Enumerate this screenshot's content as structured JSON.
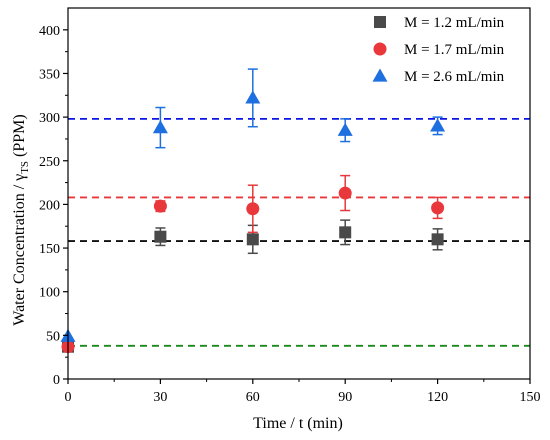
{
  "chart_data": {
    "type": "scatter",
    "xlabel": "Time / t (min)",
    "ylabel": {
      "main": "Water Concentration / γ",
      "sub": "TS",
      "unit": " (PPM)"
    },
    "xlim": [
      0,
      150
    ],
    "ylim": [
      0,
      425
    ],
    "xticks": [
      0,
      30,
      60,
      90,
      120,
      150
    ],
    "yticks": [
      0,
      50,
      100,
      150,
      200,
      250,
      300,
      350,
      400
    ],
    "grid": false,
    "legend_position": "top-right",
    "series": [
      {
        "name": "M = 1.2 mL/min",
        "marker": "square",
        "color": "#4a4a4a",
        "x": [
          0,
          30,
          60,
          90,
          120
        ],
        "y": [
          37,
          163,
          160,
          168,
          160
        ],
        "err": [
          0,
          10,
          16,
          14,
          12
        ]
      },
      {
        "name": "M = 1.7 mL/min",
        "marker": "circle",
        "color": "#e8383b",
        "x": [
          0,
          30,
          60,
          90,
          120
        ],
        "y": [
          37,
          198,
          195,
          213,
          196
        ],
        "err": [
          0,
          6,
          27,
          20,
          12
        ]
      },
      {
        "name": "M = 2.6 mL/min",
        "marker": "triangle",
        "color": "#1e6fe0",
        "x": [
          0,
          30,
          60,
          90,
          120
        ],
        "y": [
          49,
          288,
          322,
          285,
          290
        ],
        "err": [
          0,
          23,
          33,
          13,
          10
        ]
      }
    ],
    "reference_lines": [
      {
        "y": 298,
        "color": "#0a14e6"
      },
      {
        "y": 208,
        "color": "#e8383b"
      },
      {
        "y": 158,
        "color": "#111111"
      },
      {
        "y": 38,
        "color": "#1a8a1a"
      }
    ]
  }
}
